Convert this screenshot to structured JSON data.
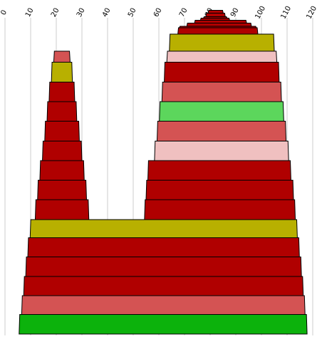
{
  "chart_data": {
    "type": "area",
    "title": "",
    "xlabel": "",
    "ylabel": "",
    "xlim": [
      0,
      120
    ],
    "x_ticks": [
      "0",
      "10",
      "20",
      "30",
      "40",
      "50",
      "60",
      "70",
      "80",
      "90",
      "100",
      "110",
      "120"
    ],
    "grid": true,
    "legend": "none",
    "colors": {
      "dark_red": "#b00000",
      "light_red": "#d45353",
      "pink": "#f0c0c0",
      "olive": "#b8b000",
      "light_green": "#5cd65c",
      "green": "#0cb20c",
      "grid": "#cccccc",
      "stroke": "#000000"
    },
    "layers": [
      {
        "level": 0,
        "x_start": 5.5,
        "x_end": 117.8,
        "color": "green"
      },
      {
        "level": 1,
        "x_start": 6.5,
        "x_end": 117.0,
        "color": "light_red"
      },
      {
        "level": 2,
        "x_start": 7.3,
        "x_end": 116.3,
        "color": "dark_red"
      },
      {
        "level": 3,
        "x_start": 8.1,
        "x_end": 115.6,
        "color": "dark_red"
      },
      {
        "level": 4,
        "x_start": 8.9,
        "x_end": 114.8,
        "color": "dark_red"
      },
      {
        "level": 5,
        "x_start": 9.8,
        "x_end": 114.0,
        "color": "olive"
      },
      {
        "level": 6,
        "x_start": 11.8,
        "x_end": 32.7,
        "color": "dark_red"
      },
      {
        "level": 6,
        "x_start": 54.4,
        "x_end": 113.2,
        "color": "dark_red"
      },
      {
        "level": 7,
        "x_start": 12.7,
        "x_end": 31.8,
        "color": "dark_red"
      },
      {
        "level": 7,
        "x_start": 55.0,
        "x_end": 112.5,
        "color": "dark_red"
      },
      {
        "level": 8,
        "x_start": 13.6,
        "x_end": 30.9,
        "color": "dark_red"
      },
      {
        "level": 8,
        "x_start": 55.7,
        "x_end": 111.5,
        "color": "dark_red"
      },
      {
        "level": 9,
        "x_start": 14.6,
        "x_end": 30.0,
        "color": "dark_red"
      },
      {
        "level": 9,
        "x_start": 58.3,
        "x_end": 110.6,
        "color": "pink"
      },
      {
        "level": 10,
        "x_start": 15.5,
        "x_end": 29.0,
        "color": "dark_red"
      },
      {
        "level": 10,
        "x_start": 59.3,
        "x_end": 109.6,
        "color": "light_red"
      },
      {
        "level": 11,
        "x_start": 16.4,
        "x_end": 28.0,
        "color": "dark_red"
      },
      {
        "level": 11,
        "x_start": 60.2,
        "x_end": 108.7,
        "color": "light_green"
      },
      {
        "level": 12,
        "x_start": 17.2,
        "x_end": 27.2,
        "color": "dark_red"
      },
      {
        "level": 12,
        "x_start": 61.2,
        "x_end": 107.8,
        "color": "light_red"
      },
      {
        "level": 13,
        "x_start": 18.1,
        "x_end": 26.3,
        "color": "olive"
      },
      {
        "level": 13,
        "x_start": 62.1,
        "x_end": 106.9,
        "color": "dark_red"
      },
      {
        "level": 14,
        "x_start": 19.0,
        "x_end": 25.4,
        "color": "light_red"
      },
      {
        "level": 14,
        "x_start": 63.1,
        "x_end": 106.0,
        "color": "pink"
      },
      {
        "level": 15,
        "x_start": 64.1,
        "x_end": 105.0,
        "color": "olive"
      },
      {
        "level": 16,
        "x_start": 67.4,
        "x_end": 98.6,
        "color": "dark_red"
      },
      {
        "level": 17,
        "x_start": 68.0,
        "x_end": 98.0,
        "color": "dark_red"
      },
      {
        "level": 18,
        "x_start": 70.9,
        "x_end": 96.1,
        "color": "dark_red"
      },
      {
        "level": 19,
        "x_start": 73.9,
        "x_end": 94.2,
        "color": "dark_red"
      },
      {
        "level": 20,
        "x_start": 76.2,
        "x_end": 87.6,
        "color": "dark_red"
      },
      {
        "level": 21,
        "x_start": 77.4,
        "x_end": 86.6,
        "color": "dark_red"
      },
      {
        "level": 22,
        "x_start": 78.3,
        "x_end": 85.9,
        "color": "dark_red"
      },
      {
        "level": 23,
        "x_start": 79.2,
        "x_end": 85.1,
        "color": "dark_red"
      }
    ]
  }
}
